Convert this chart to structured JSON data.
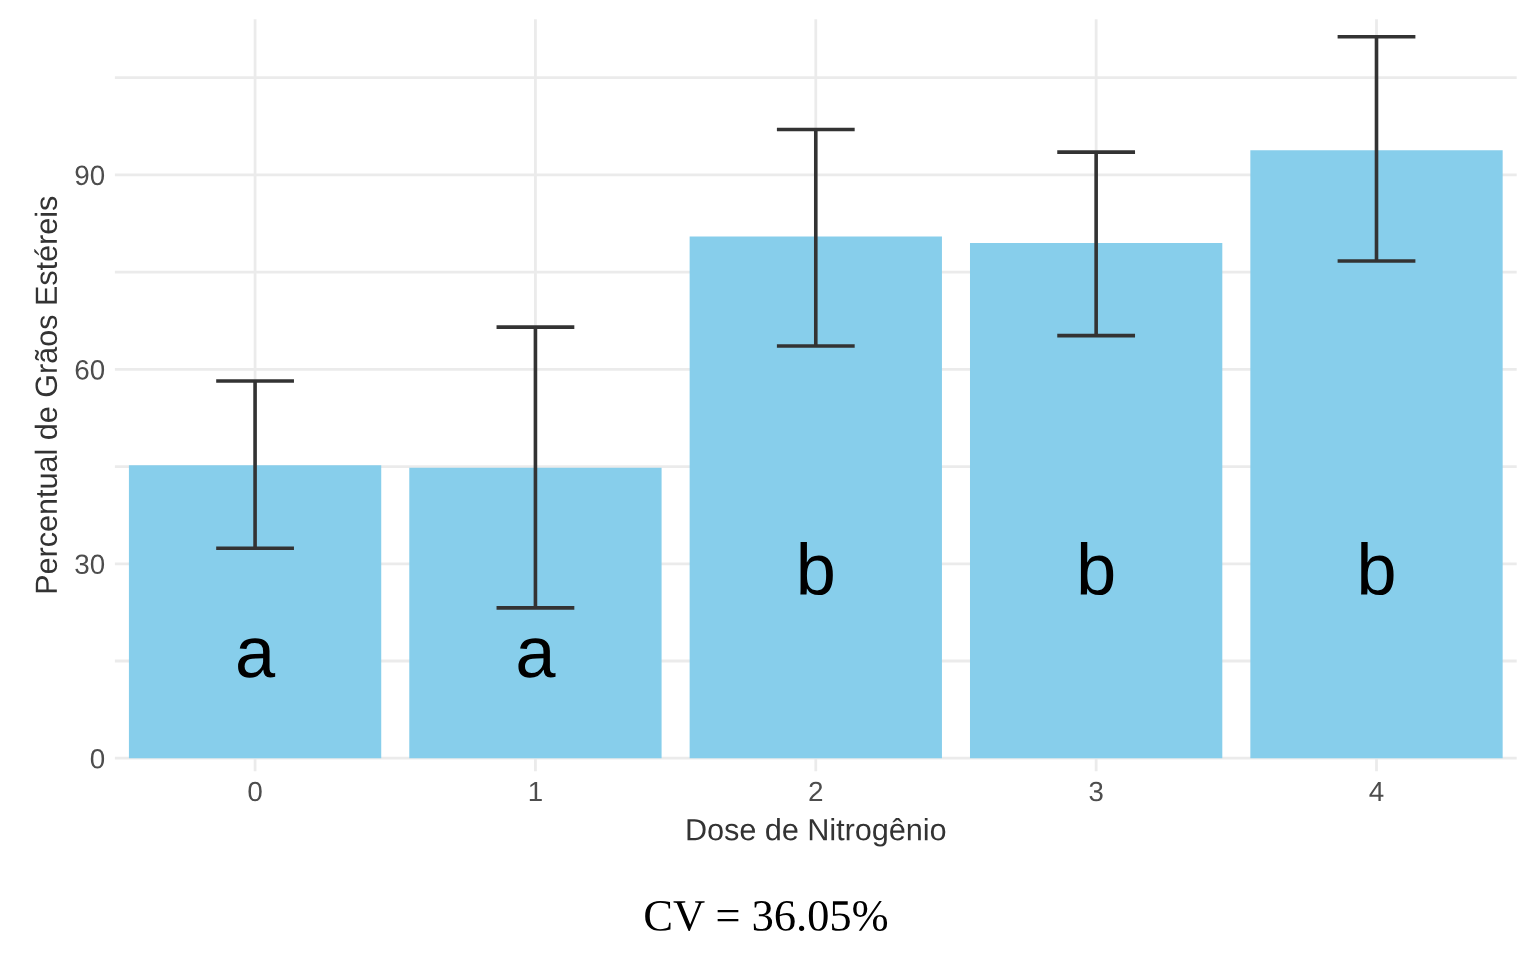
{
  "chart_data": {
    "type": "bar",
    "xlabel": "Dose de Nitrogênio",
    "ylabel": "Percentual de Grãos Estéreis",
    "categories": [
      "0",
      "1",
      "2",
      "3",
      "4"
    ],
    "values": [
      45.2,
      44.8,
      80.5,
      79.5,
      93.8
    ],
    "errors": [
      [
        32.4,
        58.2
      ],
      [
        23.2,
        66.5
      ],
      [
        63.6,
        97.0
      ],
      [
        65.2,
        93.5
      ],
      [
        76.7,
        111.3
      ]
    ],
    "color": "#87ceeb",
    "ylim": [
      -2,
      114
    ],
    "yticks": [
      0,
      {
        "value": 15,
        "label": null
      },
      30,
      {
        "value": 45,
        "label": null
      },
      60,
      {
        "value": 75,
        "label": null
      },
      90,
      {
        "value": 105,
        "label": null
      }
    ],
    "grid": true,
    "annotations": [
      "a",
      "a",
      "b",
      "b",
      "b",
      "CV = 36.05%"
    ]
  }
}
